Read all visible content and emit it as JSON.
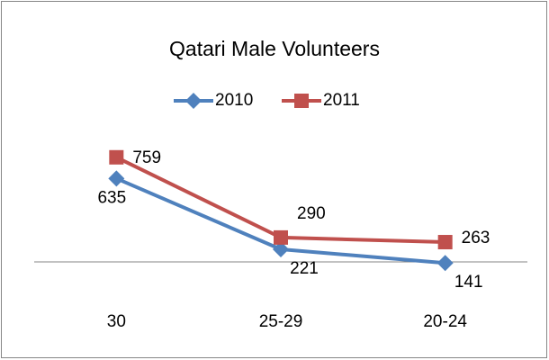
{
  "chart_data": {
    "type": "line",
    "title": "Qatari Male Volunteers",
    "categories": [
      "30",
      "25-29",
      "20-24"
    ],
    "series": [
      {
        "name": "2010",
        "color": "#4f81bd",
        "marker": "diamond",
        "values": [
          635,
          221,
          141
        ]
      },
      {
        "name": "2011",
        "color": "#c0504d",
        "marker": "square",
        "values": [
          759,
          290,
          263
        ]
      }
    ],
    "ylim": [
      0,
      800
    ],
    "legend": "top"
  }
}
